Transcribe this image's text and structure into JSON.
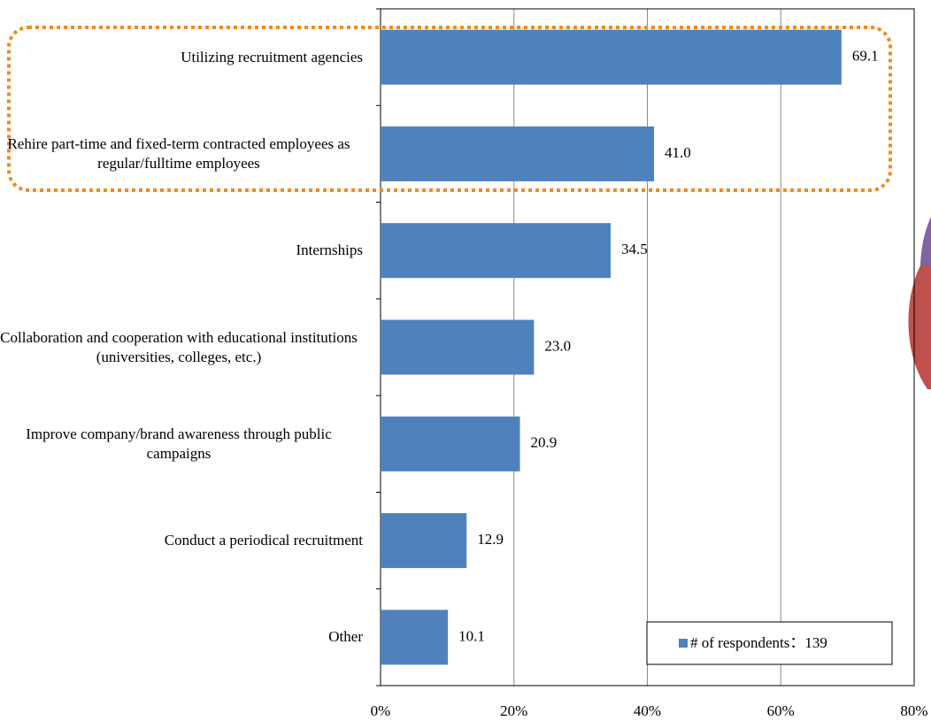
{
  "chart_data": {
    "type": "bar",
    "orientation": "horizontal",
    "categories": [
      "Utilizing recruitment agencies",
      "Rehire part-time and fixed-term contracted employees as regular/fulltime employees",
      "Internships",
      "Collaboration and cooperation with educational institutions (universities, colleges, etc.)",
      "Improve company/brand awareness through public campaigns",
      "Conduct a periodical recruitment",
      "Other"
    ],
    "series": [
      {
        "name": "# of respondents：139",
        "color": "#4f81bd",
        "values": [
          69.1,
          41,
          34.5,
          23,
          20.9,
          12.9,
          10.1
        ],
        "value_labels": [
          "69.1",
          "41.0",
          "34.5",
          "23.0",
          "20.9",
          "12.9",
          "10.1"
        ]
      }
    ],
    "xlim": [
      0,
      80
    ],
    "xticks": [
      {
        "value": 0,
        "label": "0%"
      },
      {
        "value": 20,
        "label": "20%"
      },
      {
        "value": 40,
        "label": "40%"
      },
      {
        "value": 60,
        "label": "60%"
      },
      {
        "value": 80,
        "label": "80%"
      }
    ],
    "grid": true,
    "legend": "lower right"
  }
}
